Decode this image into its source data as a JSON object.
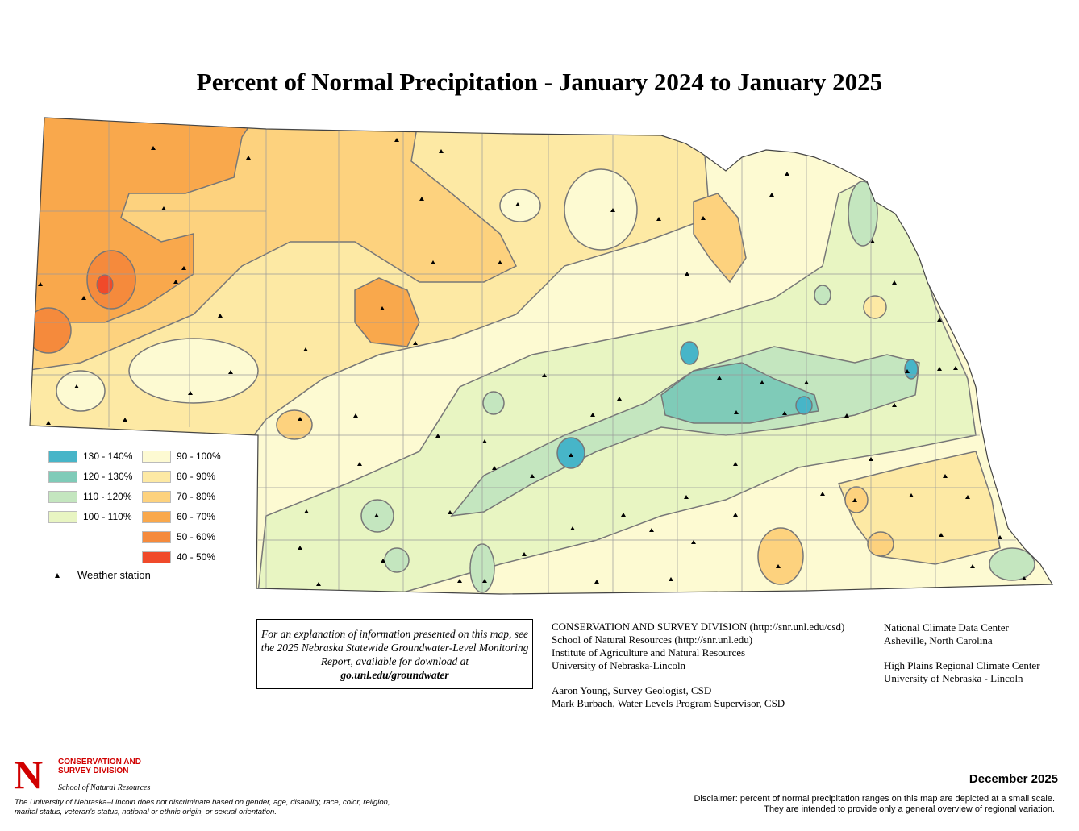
{
  "title": "Percent of Normal Precipitation - January 2024 to January 2025",
  "legend": {
    "items": [
      {
        "label": "130 - 140%",
        "color": "#47b5c8"
      },
      {
        "label": "120 - 130%",
        "color": "#7fcbb8"
      },
      {
        "label": "110 - 120%",
        "color": "#c4e6bf"
      },
      {
        "label": "100 - 110%",
        "color": "#e8f5c2"
      },
      {
        "label": "90 - 100%",
        "color": "#fdfad2"
      },
      {
        "label": "80 - 90%",
        "color": "#fde9a4"
      },
      {
        "label": "70 - 80%",
        "color": "#fdd27e"
      },
      {
        "label": "60 - 70%",
        "color": "#f9a84c"
      },
      {
        "label": "50 - 60%",
        "color": "#f58a3c"
      },
      {
        "label": "40 - 50%",
        "color": "#f04a2a"
      }
    ],
    "station_label": "Weather station"
  },
  "explanation": {
    "text": "For an explanation of information presented on this map, see the 2025 Nebraska Statewide Groundwater-Level Monitoring Report, available for download at",
    "url": "go.unl.edu/groundwater"
  },
  "credits_csd": [
    "CONSERVATION AND SURVEY DIVISION (http://snr.unl.edu/csd)",
    "School of Natural Resources (http://snr.unl.edu)",
    "Institute of Agriculture and Natural Resources",
    "University of Nebraska-Lincoln"
  ],
  "credits_people": [
    "Aaron Young, Survey Geologist, CSD",
    "Mark Burbach, Water Levels Program Supervisor, CSD"
  ],
  "credits_ncdc": [
    "National Climate Data Center",
    "Asheville, North Carolina"
  ],
  "credits_hprcc": [
    "High Plains Regional Climate Center",
    "University of Nebraska - Lincoln"
  ],
  "logo": {
    "letter": "N",
    "division": "CONSERVATION AND SURVEY DIVISION",
    "school": "School of Natural Resources"
  },
  "nondiscrimination": "The University of Nebraska–Lincoln does not discriminate based on gender, age, disability, race, color, religion, marital status, veteran's status, national or ethnic origin, or sexual orientation.",
  "date": "December 2025",
  "disclaimer": "Disclaimer: percent of normal precipitation ranges on this map are depicted at a small scale.  They are intended to provide only a general overview of regional variation."
}
